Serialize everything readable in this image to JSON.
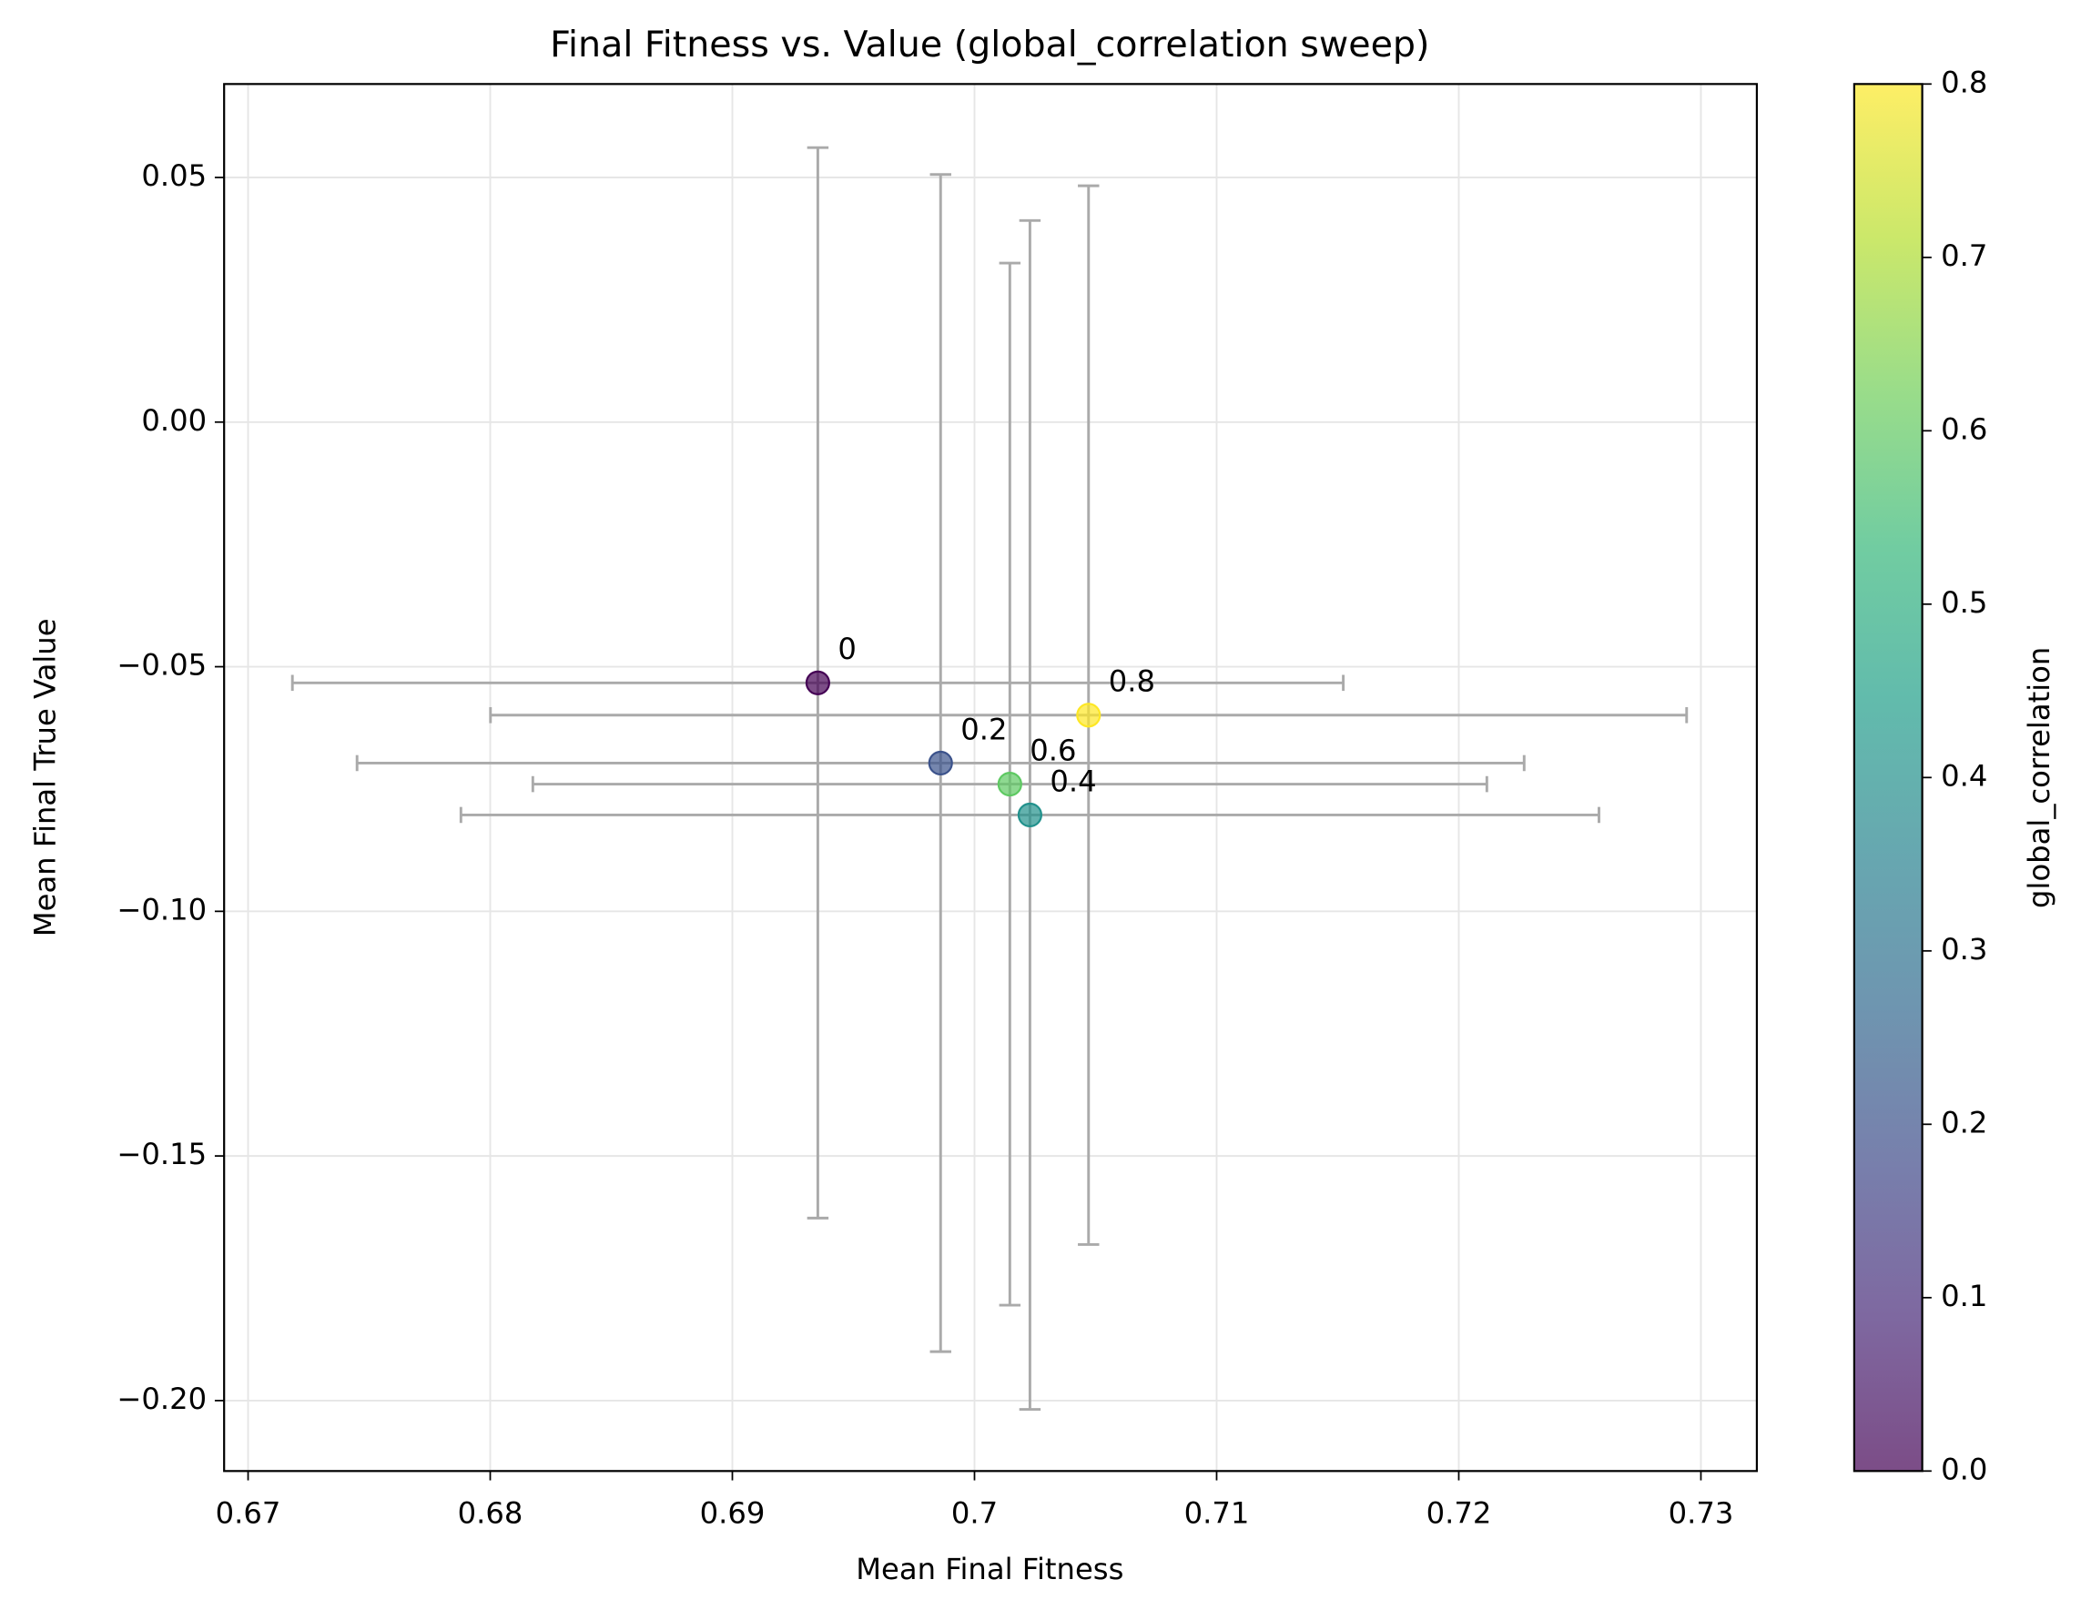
{
  "chart_data": {
    "type": "scatter",
    "title": "Final Fitness vs. Value (global_correlation sweep)",
    "x_label": "Mean Final Fitness",
    "y_label": "Mean Final True Value",
    "colorbar_label": "global_correlation",
    "x": [
      0.69353,
      0.6986,
      0.70229,
      0.70146,
      0.70471
    ],
    "values": [
      -0.0533,
      -0.0697,
      -0.0803,
      -0.074,
      -0.0599
    ],
    "xerr": [
      0.0217,
      0.0241,
      0.0235,
      0.0197,
      0.0247
    ],
    "yerr": [
      0.1094,
      0.1203,
      0.1215,
      0.1065,
      0.1082
    ],
    "c": [
      0,
      0.2,
      0.4,
      0.6,
      0.8
    ],
    "colors": [
      "#440154",
      "#3b528b",
      "#21918c",
      "#5ec962",
      "#fde725"
    ],
    "colormap": [
      "#440154",
      "#482878",
      "#3e4989",
      "#31688e",
      "#26828e",
      "#1f9e89",
      "#35b779",
      "#6ece58",
      "#b5de2b",
      "#fde725"
    ],
    "error_color": "#aaaaaa",
    "xlim": [
      0.66901,
      0.73231
    ],
    "ylim": [
      -0.2144,
      0.0691
    ],
    "clim": [
      0,
      0.8
    ],
    "xticks": [
      0.67,
      0.68,
      0.69,
      0.7,
      0.71,
      0.72,
      0.73
    ],
    "yticks": [
      0.05,
      {
        "value": 0,
        "label": "0.00"
      },
      {
        "value": -0.05,
        "label": "−0.05"
      },
      {
        "value": -0.1,
        "label": "−0.10"
      },
      {
        "value": -0.15,
        "label": "−0.15"
      },
      {
        "value": -0.2,
        "label": "−0.20"
      }
    ],
    "cticks": [
      {
        "value": 0,
        "label": "0.0"
      },
      0.1,
      0.2,
      0.3,
      0.4,
      0.5,
      0.6,
      0.7,
      0.8
    ],
    "grid": true
  }
}
